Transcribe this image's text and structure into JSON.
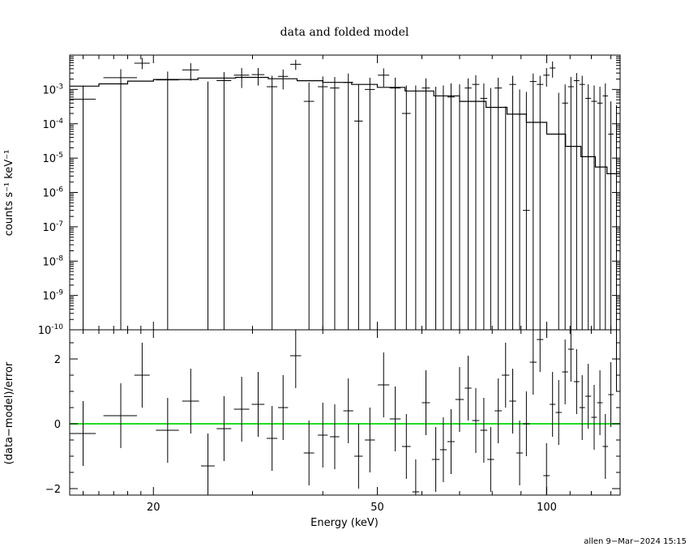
{
  "chart_data": {
    "type": "scatter",
    "title": "data and folded model",
    "xlabel": "Energy (keV)",
    "x_scale": "log",
    "xlim": [
      14.2,
      135
    ],
    "x_ticks": [
      20,
      50,
      100
    ],
    "top_panel": {
      "ylabel": "counts s⁻¹ keV⁻¹",
      "y_scale": "log",
      "ylim": [
        1e-10,
        0.01
      ],
      "y_ticks": [
        {
          "v": 0.001,
          "mant": "10",
          "exp": "-3"
        },
        {
          "v": 0.0001,
          "mant": "10",
          "exp": "-4"
        },
        {
          "v": 1e-05,
          "mant": "10",
          "exp": "-5"
        },
        {
          "v": 1e-06,
          "mant": "10",
          "exp": "-6"
        },
        {
          "v": 1e-07,
          "mant": "10",
          "exp": "-7"
        },
        {
          "v": 1e-08,
          "mant": "10",
          "exp": "-8"
        },
        {
          "v": 1e-09,
          "mant": "10",
          "exp": "-9"
        },
        {
          "v": 1e-10,
          "mant": "10",
          "exp": "-10"
        }
      ],
      "model_color": "#000000",
      "data": [
        {
          "x": 15.0,
          "xe": 0.8,
          "y": 0.00052,
          "lo": 1e-10,
          "hi": 0.0013
        },
        {
          "x": 17.5,
          "xe": 1.2,
          "y": 0.0022,
          "lo": 1e-10,
          "hi": 0.0039
        },
        {
          "x": 19.1,
          "xe": 0.6,
          "y": 0.0058,
          "lo": 0.0039,
          "hi": 0.0082
        },
        {
          "x": 21.2,
          "xe": 1.0,
          "y": 0.0019,
          "lo": 1e-10,
          "hi": 0.0033
        },
        {
          "x": 23.3,
          "xe": 0.8,
          "y": 0.0037,
          "lo": 0.0018,
          "hi": 0.0058
        },
        {
          "x": 25.0,
          "xe": 0.7,
          "y": 1e-10,
          "lo": 1e-10,
          "hi": 0.0017
        },
        {
          "x": 26.7,
          "xe": 0.8,
          "y": 0.0018,
          "lo": 1e-10,
          "hi": 0.0032
        },
        {
          "x": 28.7,
          "xe": 0.9,
          "y": 0.0026,
          "lo": 0.0011,
          "hi": 0.0042
        },
        {
          "x": 30.7,
          "xe": 0.8,
          "y": 0.0027,
          "lo": 0.0013,
          "hi": 0.0042
        },
        {
          "x": 32.5,
          "xe": 0.7,
          "y": 0.0012,
          "lo": 1e-10,
          "hi": 0.0025
        },
        {
          "x": 34.0,
          "xe": 0.7,
          "y": 0.0024,
          "lo": 0.001,
          "hi": 0.0038
        },
        {
          "x": 35.8,
          "xe": 0.8,
          "y": 0.0054,
          "lo": 0.0037,
          "hi": 0.0073
        },
        {
          "x": 37.8,
          "xe": 0.8,
          "y": 0.00045,
          "lo": 1e-10,
          "hi": 0.0016
        },
        {
          "x": 40.0,
          "xe": 0.8,
          "y": 0.0012,
          "lo": 1e-10,
          "hi": 0.0024
        },
        {
          "x": 42.0,
          "xe": 0.8,
          "y": 0.0011,
          "lo": 1e-10,
          "hi": 0.0023
        },
        {
          "x": 44.4,
          "xe": 0.9,
          "y": 0.0016,
          "lo": 1e-10,
          "hi": 0.0029
        },
        {
          "x": 46.3,
          "xe": 0.8,
          "y": 0.00012,
          "lo": 1e-10,
          "hi": 0.0014
        },
        {
          "x": 48.5,
          "xe": 1.0,
          "y": 0.001,
          "lo": 1e-10,
          "hi": 0.0022
        },
        {
          "x": 51.3,
          "xe": 1.2,
          "y": 0.0026,
          "lo": 0.0012,
          "hi": 0.0041
        },
        {
          "x": 53.8,
          "xe": 1.2,
          "y": 0.0011,
          "lo": 1e-10,
          "hi": 0.0022
        },
        {
          "x": 56.3,
          "xe": 1.0,
          "y": 0.0002,
          "lo": 1e-10,
          "hi": 0.0013
        },
        {
          "x": 58.5,
          "xe": 0.8,
          "y": 1e-10,
          "lo": 1e-10,
          "hi": 0.0013
        },
        {
          "x": 61.0,
          "xe": 1.0,
          "y": 0.0011,
          "lo": 1e-10,
          "hi": 0.0021
        },
        {
          "x": 63.5,
          "xe": 1.0,
          "y": 1e-10,
          "lo": 1e-10,
          "hi": 0.0012
        },
        {
          "x": 65.5,
          "xe": 0.9,
          "y": 1e-10,
          "lo": 1e-10,
          "hi": 0.0013
        },
        {
          "x": 67.6,
          "xe": 1.0,
          "y": 0.0006,
          "lo": 1e-10,
          "hi": 0.0015
        },
        {
          "x": 70.0,
          "xe": 1.2,
          "y": 1e-10,
          "lo": 1e-10,
          "hi": 0.0014
        },
        {
          "x": 72.5,
          "xe": 1.0,
          "y": 0.0011,
          "lo": 1e-10,
          "hi": 0.0021
        },
        {
          "x": 74.8,
          "xe": 1.1,
          "y": 0.0014,
          "lo": 1e-10,
          "hi": 0.0026
        },
        {
          "x": 77.3,
          "xe": 1.1,
          "y": 0.00055,
          "lo": 1e-10,
          "hi": 0.0015
        },
        {
          "x": 79.5,
          "xe": 1.1,
          "y": 1e-10,
          "lo": 1e-10,
          "hi": 0.0011
        },
        {
          "x": 82.0,
          "xe": 1.2,
          "y": 0.0011,
          "lo": 1e-10,
          "hi": 0.0022
        },
        {
          "x": 84.5,
          "xe": 1.3,
          "y": 1e-10,
          "lo": 1e-10,
          "hi": 0.00032
        },
        {
          "x": 87.0,
          "xe": 1.2,
          "y": 0.0014,
          "lo": 1e-10,
          "hi": 0.0025
        },
        {
          "x": 89.5,
          "xe": 1.2,
          "y": 1e-10,
          "lo": 1e-10,
          "hi": 0.001
        },
        {
          "x": 92.0,
          "xe": 1.3,
          "y": 3e-07,
          "lo": 1e-10,
          "hi": 0.00085
        },
        {
          "x": 94.6,
          "xe": 1.3,
          "y": 0.0017,
          "lo": 1e-10,
          "hi": 0.0029
        },
        {
          "x": 97.3,
          "xe": 1.3,
          "y": 0.0014,
          "lo": 1e-10,
          "hi": 0.0025
        },
        {
          "x": 99.9,
          "xe": 1.3,
          "y": 0.0026,
          "lo": 0.0012,
          "hi": 0.0042
        },
        {
          "x": 102.4,
          "xe": 1.2,
          "y": 0.0042,
          "lo": 0.0022,
          "hi": 0.0065
        },
        {
          "x": 105.0,
          "xe": 1.3,
          "y": 1e-10,
          "lo": 1e-10,
          "hi": 0.0008
        },
        {
          "x": 107.8,
          "xe": 1.3,
          "y": 0.0004,
          "lo": 1e-10,
          "hi": 0.0014
        },
        {
          "x": 110.4,
          "xe": 1.3,
          "y": 0.0012,
          "lo": 1e-10,
          "hi": 0.0023
        },
        {
          "x": 113.0,
          "xe": 1.3,
          "y": 0.0018,
          "lo": 1e-10,
          "hi": 0.003
        },
        {
          "x": 115.6,
          "xe": 1.3,
          "y": 0.0014,
          "lo": 1e-10,
          "hi": 0.0025
        },
        {
          "x": 118.5,
          "xe": 1.4,
          "y": 0.00055,
          "lo": 1e-10,
          "hi": 0.0014
        },
        {
          "x": 121.4,
          "xe": 1.4,
          "y": 0.00045,
          "lo": 1e-10,
          "hi": 0.0013
        },
        {
          "x": 124.3,
          "xe": 1.4,
          "y": 0.0004,
          "lo": 1e-10,
          "hi": 0.0012
        },
        {
          "x": 127.1,
          "xe": 1.4,
          "y": 0.00065,
          "lo": 1e-10,
          "hi": 0.0015
        },
        {
          "x": 130.0,
          "xe": 1.4,
          "y": 5e-05,
          "lo": 1e-10,
          "hi": 0.00045
        },
        {
          "x": 133.0,
          "xe": 1.5,
          "y": 1e-10,
          "lo": 1e-10,
          "hi": 0.00035
        }
      ],
      "model": [
        [
          14.2,
          0.00125
        ],
        [
          16.0,
          0.00145
        ],
        [
          18.0,
          0.00175
        ],
        [
          20.0,
          0.00195
        ],
        [
          24.0,
          0.00215
        ],
        [
          28.0,
          0.00225
        ],
        [
          32.0,
          0.00205
        ],
        [
          36.0,
          0.0018
        ],
        [
          40.0,
          0.0016
        ],
        [
          45.0,
          0.0014
        ],
        [
          50.0,
          0.00115
        ],
        [
          56.0,
          0.0009
        ],
        [
          63.0,
          0.00065
        ],
        [
          70.0,
          0.00045
        ],
        [
          78.0,
          0.0003
        ],
        [
          85.0,
          0.00019
        ],
        [
          92.0,
          0.00011
        ],
        [
          100.0,
          5e-05
        ],
        [
          108.0,
          2.2e-05
        ],
        [
          115.0,
          1.1e-05
        ],
        [
          122.0,
          5.5e-06
        ],
        [
          128.0,
          3.5e-06
        ],
        [
          135.0,
          2e-06
        ]
      ]
    },
    "bottom_panel": {
      "ylabel": "(data−model)/error",
      "ylim": [
        -2.2,
        2.9
      ],
      "y_ticks": [
        2,
        0,
        -2
      ],
      "y_tick_labels": [
        "2",
        "0",
        "−2"
      ],
      "zero_line_color": "#22dd22",
      "residuals": [
        {
          "x": 15.0,
          "xe": 0.8,
          "y": -0.3,
          "e": 1.0
        },
        {
          "x": 17.5,
          "xe": 1.2,
          "y": 0.25,
          "e": 1.0
        },
        {
          "x": 19.1,
          "xe": 0.6,
          "y": 1.5,
          "e": 1.0
        },
        {
          "x": 21.2,
          "xe": 1.0,
          "y": -0.2,
          "e": 1.0
        },
        {
          "x": 23.3,
          "xe": 0.8,
          "y": 0.7,
          "e": 1.0
        },
        {
          "x": 25.0,
          "xe": 0.7,
          "y": -1.3,
          "e": 1.0
        },
        {
          "x": 26.7,
          "xe": 0.8,
          "y": -0.15,
          "e": 1.0
        },
        {
          "x": 28.7,
          "xe": 0.9,
          "y": 0.45,
          "e": 1.0
        },
        {
          "x": 30.7,
          "xe": 0.8,
          "y": 0.6,
          "e": 1.0
        },
        {
          "x": 32.5,
          "xe": 0.7,
          "y": -0.45,
          "e": 1.0
        },
        {
          "x": 34.0,
          "xe": 0.7,
          "y": 0.5,
          "e": 1.0
        },
        {
          "x": 35.8,
          "xe": 0.8,
          "y": 2.1,
          "e": 1.0
        },
        {
          "x": 37.8,
          "xe": 0.8,
          "y": -0.9,
          "e": 1.0
        },
        {
          "x": 40.0,
          "xe": 0.8,
          "y": -0.35,
          "e": 1.0
        },
        {
          "x": 42.0,
          "xe": 0.8,
          "y": -0.4,
          "e": 1.0
        },
        {
          "x": 44.4,
          "xe": 0.9,
          "y": 0.4,
          "e": 1.0
        },
        {
          "x": 46.3,
          "xe": 0.8,
          "y": -1.0,
          "e": 1.0
        },
        {
          "x": 48.5,
          "xe": 1.0,
          "y": -0.5,
          "e": 1.0
        },
        {
          "x": 51.3,
          "xe": 1.2,
          "y": 1.2,
          "e": 1.0
        },
        {
          "x": 53.8,
          "xe": 1.2,
          "y": 0.15,
          "e": 1.0
        },
        {
          "x": 56.3,
          "xe": 1.0,
          "y": -0.7,
          "e": 1.0
        },
        {
          "x": 58.5,
          "xe": 0.8,
          "y": -2.1,
          "e": 1.0
        },
        {
          "x": 61.0,
          "xe": 1.0,
          "y": 0.65,
          "e": 1.0
        },
        {
          "x": 63.5,
          "xe": 1.0,
          "y": -1.1,
          "e": 1.0
        },
        {
          "x": 65.5,
          "xe": 0.9,
          "y": -0.8,
          "e": 1.0
        },
        {
          "x": 67.6,
          "xe": 1.0,
          "y": -0.55,
          "e": 1.0
        },
        {
          "x": 70.0,
          "xe": 1.2,
          "y": 0.75,
          "e": 1.0
        },
        {
          "x": 72.5,
          "xe": 1.0,
          "y": 1.1,
          "e": 1.0
        },
        {
          "x": 74.8,
          "xe": 1.1,
          "y": 0.1,
          "e": 1.0
        },
        {
          "x": 77.3,
          "xe": 1.1,
          "y": -0.2,
          "e": 1.0
        },
        {
          "x": 79.5,
          "xe": 1.1,
          "y": -1.1,
          "e": 1.0
        },
        {
          "x": 82.0,
          "xe": 1.2,
          "y": 0.4,
          "e": 1.0
        },
        {
          "x": 84.5,
          "xe": 1.3,
          "y": 1.5,
          "e": 1.0
        },
        {
          "x": 87.0,
          "xe": 1.2,
          "y": 0.7,
          "e": 1.0
        },
        {
          "x": 89.5,
          "xe": 1.2,
          "y": -0.9,
          "e": 1.0
        },
        {
          "x": 92.0,
          "xe": 1.3,
          "y": 0.0,
          "e": 1.0
        },
        {
          "x": 94.6,
          "xe": 1.3,
          "y": 1.9,
          "e": 1.0
        },
        {
          "x": 97.3,
          "xe": 1.3,
          "y": 2.6,
          "e": 1.0
        },
        {
          "x": 99.9,
          "xe": 1.3,
          "y": -1.6,
          "e": 1.0
        },
        {
          "x": 102.4,
          "xe": 1.2,
          "y": 0.6,
          "e": 1.0
        },
        {
          "x": 105.0,
          "xe": 1.3,
          "y": 0.35,
          "e": 1.0
        },
        {
          "x": 107.8,
          "xe": 1.3,
          "y": 1.6,
          "e": 1.0
        },
        {
          "x": 110.4,
          "xe": 1.3,
          "y": 2.3,
          "e": 1.0
        },
        {
          "x": 113.0,
          "xe": 1.3,
          "y": 1.3,
          "e": 1.0
        },
        {
          "x": 115.6,
          "xe": 1.3,
          "y": 0.5,
          "e": 1.0
        },
        {
          "x": 118.5,
          "xe": 1.4,
          "y": 0.85,
          "e": 1.0
        },
        {
          "x": 121.4,
          "xe": 1.4,
          "y": 0.2,
          "e": 1.0
        },
        {
          "x": 124.3,
          "xe": 1.4,
          "y": 0.65,
          "e": 1.0
        },
        {
          "x": 127.1,
          "xe": 1.4,
          "y": -0.7,
          "e": 1.0
        },
        {
          "x": 130.0,
          "xe": 1.4,
          "y": 0.9,
          "e": 1.0
        },
        {
          "x": 133.0,
          "xe": 1.5,
          "y": 2.0,
          "e": 1.0
        }
      ]
    }
  },
  "footer": "allen  9−Mar−2024 15:15"
}
